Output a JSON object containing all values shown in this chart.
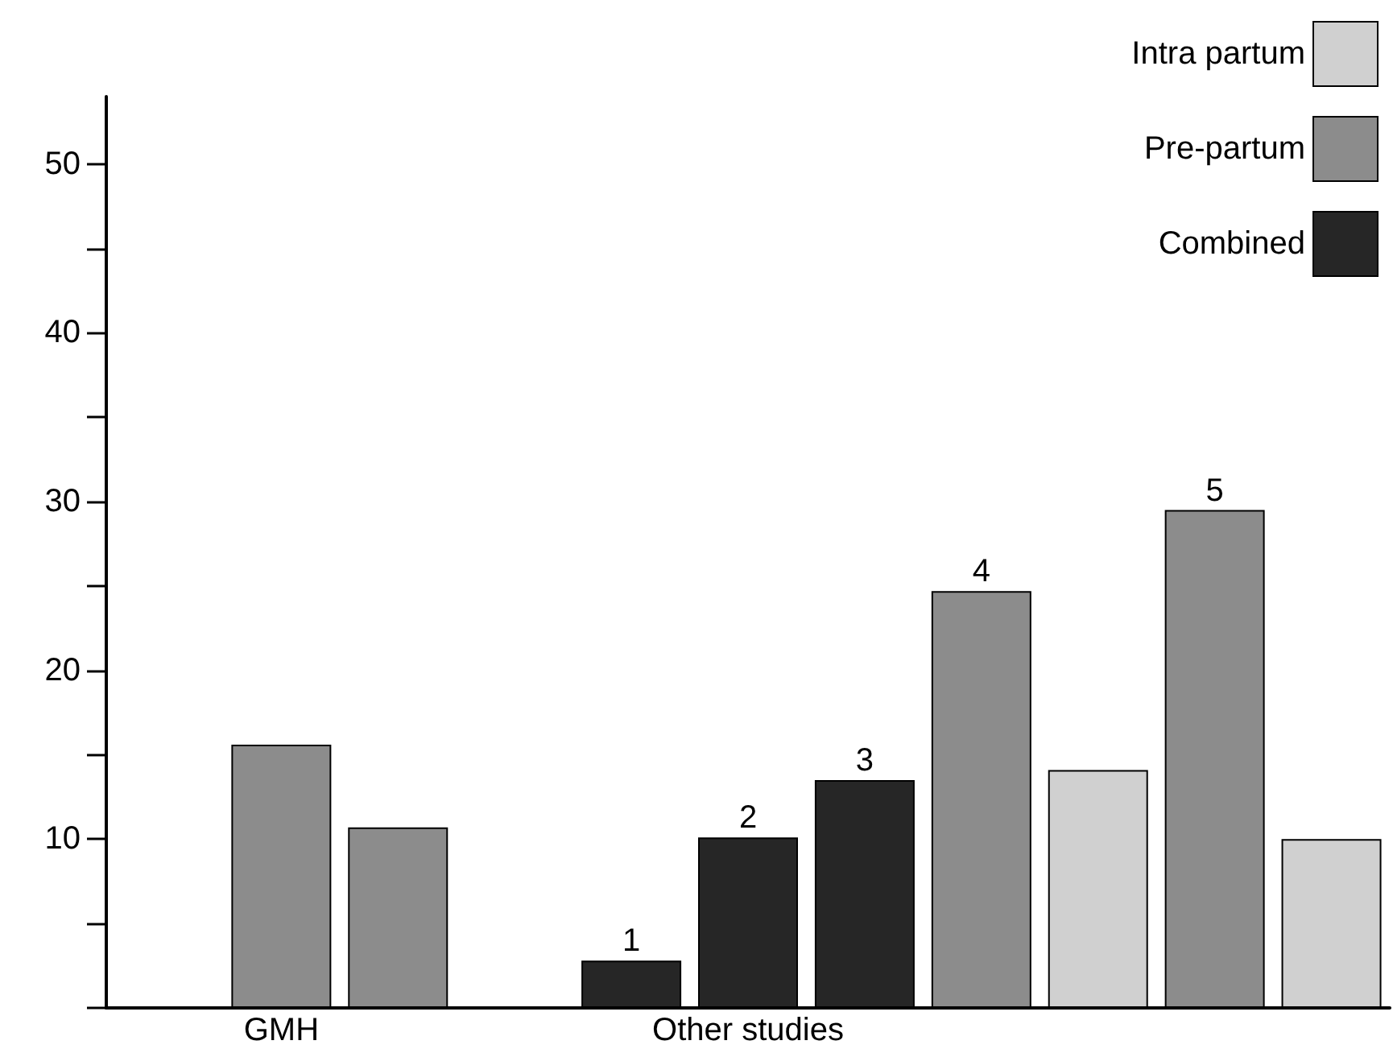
{
  "chart_data": {
    "type": "bar",
    "stacked": true,
    "categories": [
      null,
      "GMH",
      null,
      null,
      null,
      "Other studies",
      null,
      null,
      null,
      null,
      null
    ],
    "series": [
      {
        "name": "Intra partum",
        "color": "#d0d0d0",
        "values": [
          null,
          null,
          null,
          null,
          null,
          null,
          null,
          null,
          14.1,
          null,
          10.0
        ]
      },
      {
        "name": "Pre-partum",
        "color": "#8c8c8c",
        "values": [
          null,
          15.6,
          10.7,
          null,
          null,
          null,
          null,
          24.7,
          null,
          29.5,
          null
        ]
      },
      {
        "name": "Combined",
        "color": "#262626",
        "values": [
          null,
          null,
          null,
          null,
          2.8,
          10.1,
          13.5,
          null,
          null,
          null,
          null
        ]
      }
    ],
    "annotations": [
      {
        "text": "1",
        "y": 2.8
      },
      {
        "text": "2",
        "y": 10.1
      },
      {
        "text": "3",
        "y": 13.5
      },
      {
        "text": "4",
        "y": 24.7
      },
      {
        "text": "5",
        "y": 29.5
      }
    ],
    "ylim": [
      0,
      54
    ],
    "yticks": [
      {
        "value": 0,
        "label": null
      },
      {
        "value": 5,
        "label": null
      },
      10,
      {
        "value": 15,
        "label": null
      },
      20,
      {
        "value": 25,
        "label": null
      },
      30,
      {
        "value": 35,
        "label": null
      },
      40,
      {
        "value": 45,
        "label": null
      },
      50
    ],
    "grid": false,
    "legend": "top right"
  }
}
